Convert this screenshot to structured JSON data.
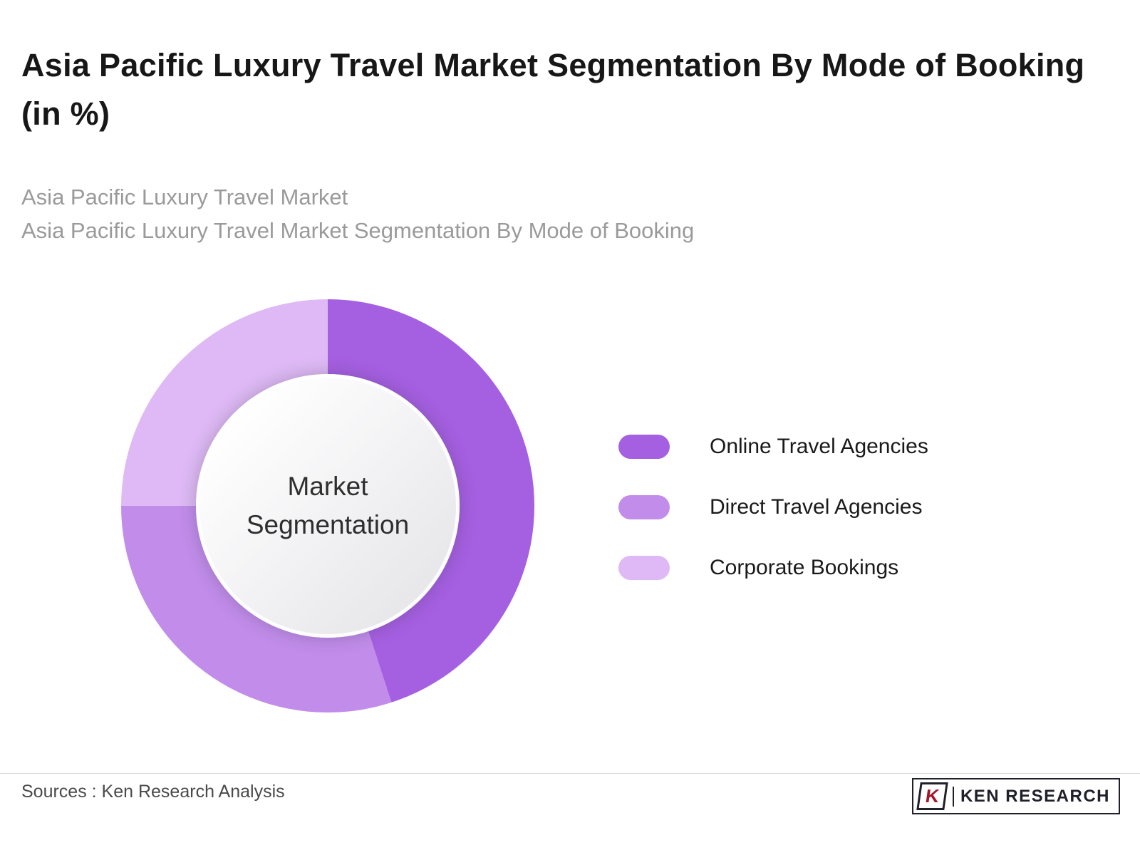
{
  "page": {
    "title": "Asia Pacific Luxury Travel Market Segmentation By Mode of Booking (in %)",
    "subtitle_line1": "Asia Pacific Luxury Travel Market",
    "subtitle_line2": "Asia Pacific Luxury Travel Market Segmentation By Mode of Booking"
  },
  "chart_data": {
    "type": "pie",
    "donut": true,
    "title": "Asia Pacific Luxury Travel Market Segmentation By Mode of Booking (in %)",
    "center_label": "Market Segmentation",
    "categories": [
      "Online Travel Agencies",
      "Direct Travel Agencies",
      "Corporate Bookings"
    ],
    "values": [
      45,
      30,
      25
    ],
    "colors": [
      "#a55fe1",
      "#c18cea",
      "#deb9f5"
    ],
    "start_angle_deg": 0,
    "direction": "clockwise",
    "legend_position": "right",
    "data_labels_shown": false
  },
  "legend": {
    "items": [
      {
        "label": "Online Travel Agencies",
        "color": "#a55fe1"
      },
      {
        "label": "Direct Travel Agencies",
        "color": "#c18cea"
      },
      {
        "label": "Corporate Bookings",
        "color": "#deb9f5"
      }
    ]
  },
  "footer": {
    "source_text": "Sources : Ken Research Analysis",
    "brand_icon_letter": "K",
    "brand_name": "KEN RESEARCH"
  }
}
